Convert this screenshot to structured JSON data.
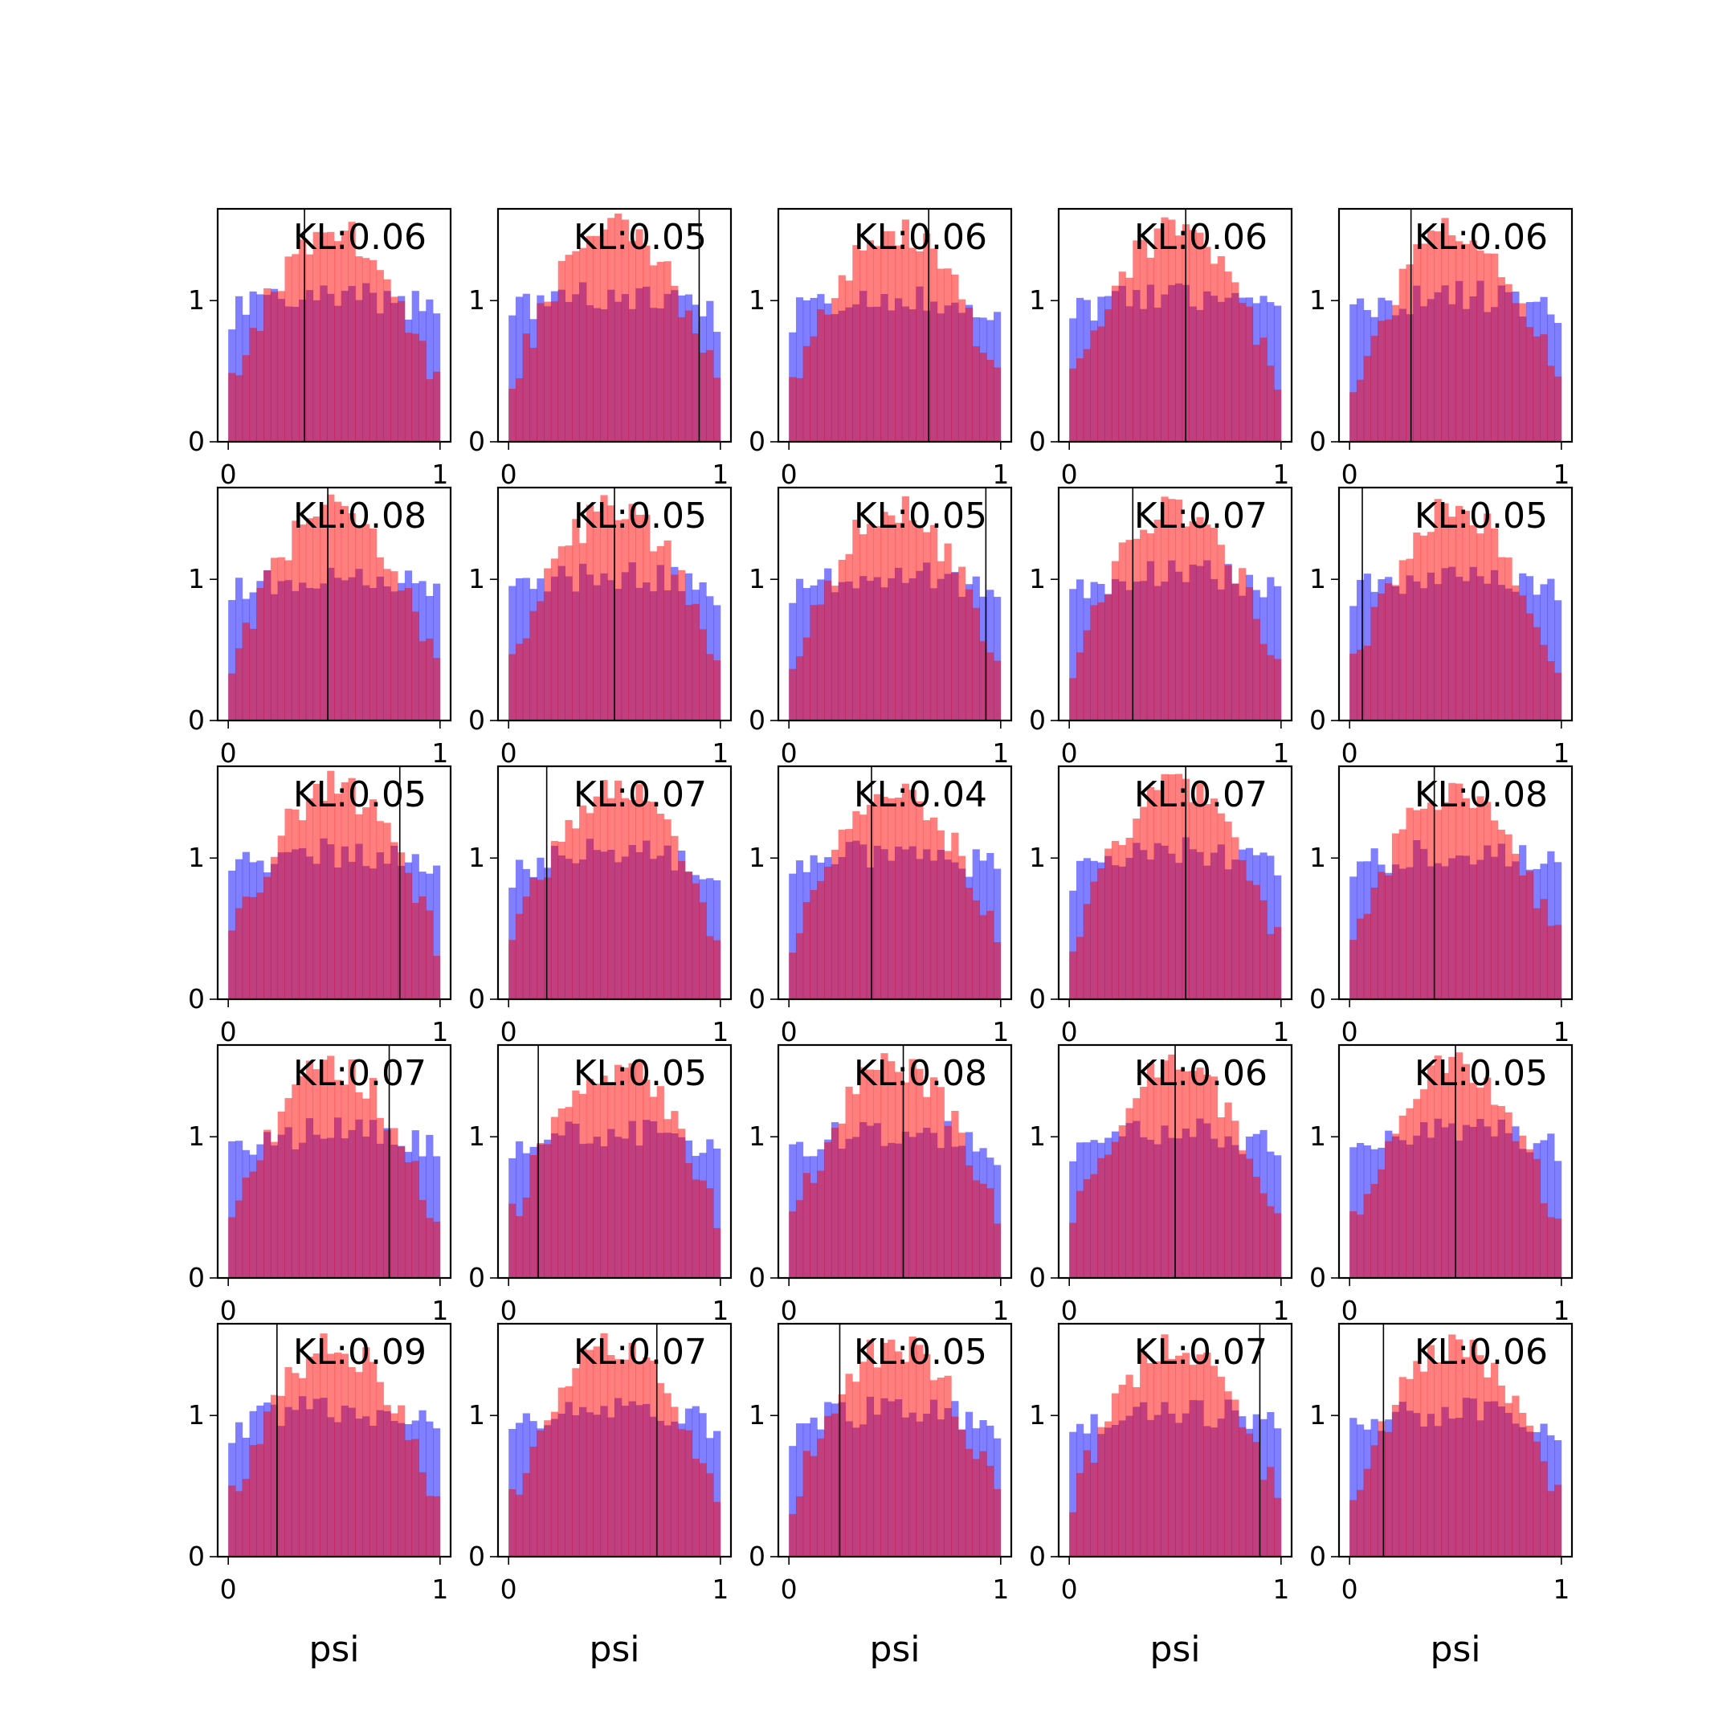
{
  "chart_data": {
    "type": "histogram-grid",
    "rows": 5,
    "cols": 5,
    "bins": 30,
    "x_axis": {
      "label": "psi",
      "xlim": [
        -0.05,
        1.05
      ],
      "ticks": [
        "0",
        "1"
      ]
    },
    "y_axis": {
      "ylim": [
        0,
        1.65
      ],
      "ticks": [
        "0",
        "1"
      ]
    },
    "colors": {
      "blue_series": "#0000ff",
      "red_series": "#ff0000",
      "alpha": 0.5,
      "marker_line": "#000000"
    },
    "annotation_prefix": "KL:",
    "panels": [
      {
        "kl": "0.06",
        "marker_x": 0.36
      },
      {
        "kl": "0.05",
        "marker_x": 0.9
      },
      {
        "kl": "0.06",
        "marker_x": 0.66
      },
      {
        "kl": "0.06",
        "marker_x": 0.55
      },
      {
        "kl": "0.06",
        "marker_x": 0.29
      },
      {
        "kl": "0.08",
        "marker_x": 0.47
      },
      {
        "kl": "0.05",
        "marker_x": 0.5
      },
      {
        "kl": "0.05",
        "marker_x": 0.93
      },
      {
        "kl": "0.07",
        "marker_x": 0.3
      },
      {
        "kl": "0.05",
        "marker_x": 0.06
      },
      {
        "kl": "0.05",
        "marker_x": 0.81
      },
      {
        "kl": "0.07",
        "marker_x": 0.18
      },
      {
        "kl": "0.04",
        "marker_x": 0.39
      },
      {
        "kl": "0.07",
        "marker_x": 0.55
      },
      {
        "kl": "0.08",
        "marker_x": 0.4
      },
      {
        "kl": "0.07",
        "marker_x": 0.76
      },
      {
        "kl": "0.05",
        "marker_x": 0.14
      },
      {
        "kl": "0.08",
        "marker_x": 0.54
      },
      {
        "kl": "0.06",
        "marker_x": 0.5
      },
      {
        "kl": "0.05",
        "marker_x": 0.5
      },
      {
        "kl": "0.09",
        "marker_x": 0.23
      },
      {
        "kl": "0.07",
        "marker_x": 0.7
      },
      {
        "kl": "0.05",
        "marker_x": 0.24
      },
      {
        "kl": "0.07",
        "marker_x": 0.9
      },
      {
        "kl": "0.06",
        "marker_x": 0.16
      }
    ]
  }
}
